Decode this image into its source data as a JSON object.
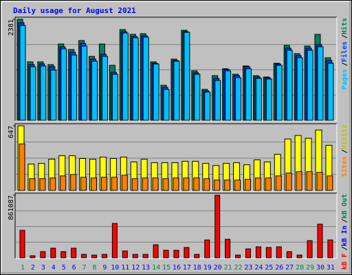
{
  "title": "Daily usage for August 2021",
  "categories": [
    "1",
    "2",
    "3",
    "4",
    "5",
    "6",
    "7",
    "8",
    "9",
    "10",
    "11",
    "12",
    "13",
    "14",
    "15",
    "16",
    "17",
    "18",
    "19",
    "20",
    "21",
    "22",
    "23",
    "24",
    "25",
    "26",
    "27",
    "28",
    "29",
    "30",
    "31"
  ],
  "category_colors": [
    "#00805c",
    "#0000ff",
    "#0000ff",
    "#0000ff",
    "#0000ff",
    "#0000ff",
    "#00805c",
    "#00805c",
    "#0000ff",
    "#0000ff",
    "#0000ff",
    "#0000ff",
    "#0000ff",
    "#00805c",
    "#00805c",
    "#0000ff",
    "#0000ff",
    "#0000ff",
    "#0000ff",
    "#0000ff",
    "#00805c",
    "#00805c",
    "#0000ff",
    "#0000ff",
    "#0000ff",
    "#0000ff",
    "#0000ff",
    "#00805c",
    "#00805c",
    "#0000ff",
    "#0000ff"
  ],
  "legend_separator": "/",
  "chart_data": [
    {
      "type": "bar",
      "ylim": [
        0,
        2381
      ],
      "yticks": [
        2381
      ],
      "series": [
        {
          "name": "Hits",
          "color": "#00805c",
          "values": [
            2381,
            1377,
            1377,
            1312,
            1798,
            1668,
            1879,
            1506,
            1798,
            1296,
            2138,
            2025,
            2041,
            1377,
            826,
            1442,
            2122,
            1166,
            729,
            1053,
            1215,
            1085,
            1280,
            1053,
            1020,
            1344,
            1765,
            1571,
            1749,
            2025,
            1474
          ]
        },
        {
          "name": "Files",
          "color": "#0040ff",
          "values": [
            2300,
            1312,
            1328,
            1263,
            1733,
            1603,
            1814,
            1441,
            1555,
            1134,
            2089,
            1976,
            1992,
            1344,
            777,
            1409,
            2089,
            1118,
            696,
            988,
            1199,
            1053,
            1263,
            1020,
            1004,
            1328,
            1701,
            1523,
            1701,
            1782,
            1409
          ]
        },
        {
          "name": "Pages",
          "color": "#00c0ff",
          "values": [
            2235,
            1263,
            1280,
            1182,
            1684,
            1539,
            1749,
            1393,
            1506,
            1085,
            2057,
            1944,
            1960,
            1328,
            729,
            1393,
            2073,
            1085,
            664,
            939,
            1166,
            1004,
            1215,
            988,
            972,
            1296,
            1652,
            1474,
            1652,
            1733,
            1344
          ]
        }
      ]
    },
    {
      "type": "bar",
      "ylim": [
        0,
        647
      ],
      "yticks": [
        647
      ],
      "series": [
        {
          "name": "Visits",
          "color": "#ffff00",
          "label_color": "#c0c000",
          "values": [
            647,
            264,
            271,
            313,
            348,
            348,
            320,
            313,
            334,
            320,
            334,
            285,
            313,
            278,
            278,
            278,
            292,
            292,
            271,
            250,
            271,
            278,
            257,
            306,
            285,
            362,
            515,
            550,
            522,
            605,
            452
          ]
        },
        {
          "name": "Sites",
          "color": "#ff8000",
          "values": [
            466,
            118,
            118,
            125,
            146,
            160,
            132,
            125,
            132,
            132,
            153,
            118,
            125,
            125,
            118,
            125,
            125,
            125,
            118,
            104,
            104,
            104,
            111,
            125,
            125,
            146,
            174,
            188,
            188,
            181,
            146
          ]
        }
      ]
    },
    {
      "type": "bar",
      "ylim": [
        0,
        861087
      ],
      "yticks": [
        861087
      ],
      "series": [
        {
          "name": "kB F",
          "color": "#ff0000",
          "values": [
            378500,
            28400,
            85200,
            132500,
            85200,
            132500,
            47300,
            37900,
            47300,
            473000,
            94600,
            47300,
            47300,
            180000,
            104000,
            104000,
            142000,
            47300,
            246000,
            861087,
            255500,
            37900,
            123000,
            151400,
            142000,
            151400,
            85200,
            37900,
            236600,
            463700,
            246000
          ]
        }
      ],
      "extra_legend": [
        {
          "name": "kB In",
          "color": "#0000ff"
        },
        {
          "name": "kB Out",
          "color": "#00805c"
        }
      ]
    }
  ]
}
